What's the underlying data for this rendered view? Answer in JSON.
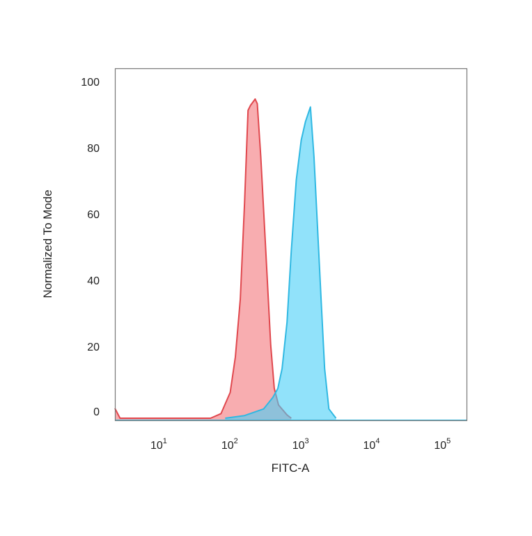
{
  "chart_data": {
    "type": "area",
    "title": "",
    "xlabel": "FITC-A",
    "ylabel": "Normalized To Mode",
    "x_scale": "log",
    "xlim": [
      2.2,
      200000
    ],
    "ylim": [
      0,
      100
    ],
    "grid": false,
    "x_ticks": [
      {
        "base": "10",
        "exp": "1",
        "value": 10
      },
      {
        "base": "10",
        "exp": "2",
        "value": 100
      },
      {
        "base": "10",
        "exp": "3",
        "value": 1000
      },
      {
        "base": "10",
        "exp": "4",
        "value": 10000
      },
      {
        "base": "10",
        "exp": "5",
        "value": 100000
      }
    ],
    "y_ticks": [
      "0",
      "20",
      "40",
      "60",
      "80",
      "100"
    ],
    "series": [
      {
        "color_fill": "#f4777c",
        "color_line": "#e0474d",
        "points": [
          [
            2.2,
            3
          ],
          [
            2.6,
            0
          ],
          [
            49,
            0
          ],
          [
            69,
            1.4
          ],
          [
            93,
            7.8
          ],
          [
            110,
            18.5
          ],
          [
            129,
            36
          ],
          [
            148,
            65
          ],
          [
            166,
            93
          ],
          [
            180,
            94.5
          ],
          [
            209,
            96.4
          ],
          [
            224,
            95
          ],
          [
            251,
            79
          ],
          [
            295,
            50.5
          ],
          [
            347,
            22
          ],
          [
            389,
            9
          ],
          [
            447,
            4
          ],
          [
            589,
            1
          ],
          [
            676,
            0
          ]
        ]
      },
      {
        "color_fill": "#47cff7",
        "color_line": "#2fb8e2",
        "points": [
          [
            79,
            0
          ],
          [
            148,
            0.8
          ],
          [
            275,
            2.8
          ],
          [
            372,
            6.3
          ],
          [
            437,
            9
          ],
          [
            501,
            15
          ],
          [
            589,
            29
          ],
          [
            676,
            50.5
          ],
          [
            794,
            72
          ],
          [
            933,
            84
          ],
          [
            1072,
            89.6
          ],
          [
            1259,
            94
          ],
          [
            1413,
            79
          ],
          [
            1585,
            57.6
          ],
          [
            1778,
            36
          ],
          [
            1995,
            15
          ],
          [
            2291,
            2.8
          ],
          [
            2884,
            0
          ]
        ]
      }
    ]
  }
}
